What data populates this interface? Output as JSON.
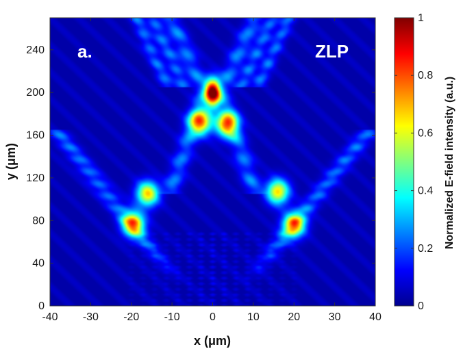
{
  "chart_data": {
    "type": "heatmap",
    "title": "",
    "panel_label": "a.",
    "annotation": "ZLP",
    "xlabel": "x (μm)",
    "ylabel": "y (μm)",
    "xlim": [
      -40,
      40
    ],
    "ylim": [
      0,
      270
    ],
    "xticks": [
      -40,
      -30,
      -20,
      -10,
      0,
      10,
      20,
      30,
      40
    ],
    "yticks": [
      0,
      40,
      80,
      120,
      160,
      200,
      240
    ],
    "colorbar": {
      "label": "Normalized E-field intensity (a.u.)",
      "range": [
        0,
        1
      ],
      "ticks": [
        0,
        0.2,
        0.4,
        0.6,
        0.8,
        1
      ],
      "colormap": "jet"
    },
    "features": [
      {
        "name": "central-focus-peak",
        "x": 0,
        "y": 200,
        "intensity": 1.0
      },
      {
        "name": "left-inner-lobe",
        "x": -3,
        "y": 172,
        "intensity": 0.68
      },
      {
        "name": "right-inner-lobe",
        "x": 3.5,
        "y": 170,
        "intensity": 0.68
      },
      {
        "name": "left-outer-arm-spot",
        "x": -16,
        "y": 105,
        "intensity": 0.62
      },
      {
        "name": "left-outer-arm-lower-spot",
        "x": -19.5,
        "y": 77,
        "intensity": 0.66
      },
      {
        "name": "right-outer-arm-spot",
        "x": 16,
        "y": 107,
        "intensity": 0.62
      },
      {
        "name": "right-outer-arm-lower-spot",
        "x": 20,
        "y": 76,
        "intensity": 0.64
      }
    ]
  }
}
